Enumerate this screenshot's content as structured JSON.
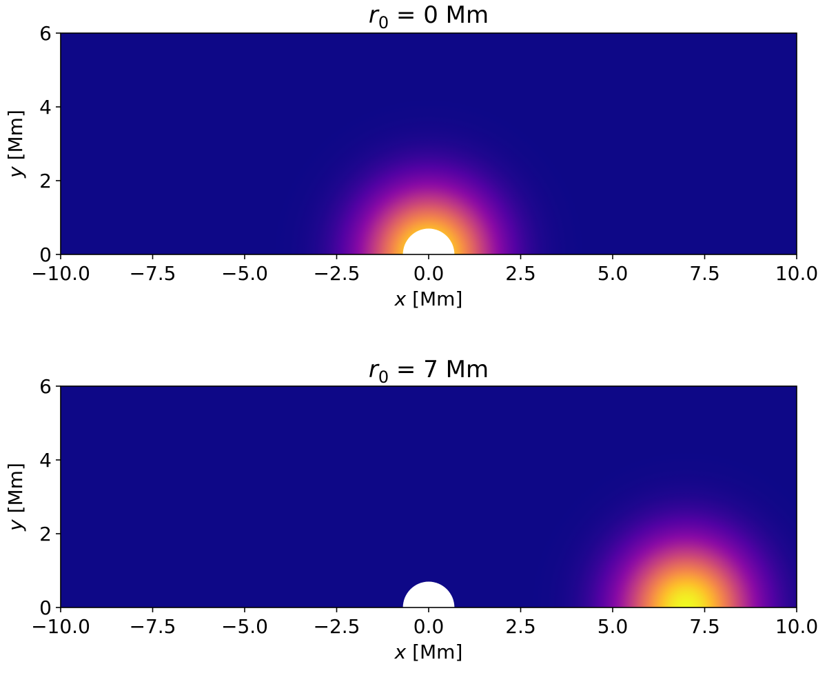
{
  "chart_data": [
    {
      "type": "heatmap",
      "title_var": "r",
      "title_sub": "0",
      "title_rest": " = 0 Mm",
      "r0": 0,
      "xlabel_var": "x",
      "xlabel_rest": " [Mm]",
      "ylabel_var": "y",
      "ylabel_rest": " [Mm]",
      "xlim": [
        -10,
        10
      ],
      "ylim": [
        0,
        6
      ],
      "xticks": [
        -10,
        -7.5,
        -5,
        -2.5,
        0,
        2.5,
        5,
        7.5,
        10
      ],
      "xtick_labels": [
        "−10.0",
        "−7.5",
        "−5.0",
        "−2.5",
        "0.0",
        "2.5",
        "5.0",
        "7.5",
        "10.0"
      ],
      "yticks": [
        0,
        2,
        4,
        6
      ],
      "ytick_labels": [
        "0",
        "2",
        "4",
        "6"
      ],
      "colormap": "plasma",
      "peak_center": [
        0,
        0
      ],
      "profile_width": 1.2,
      "masked_semicircle": {
        "center": [
          0,
          0
        ],
        "radius": 0.7
      }
    },
    {
      "type": "heatmap",
      "title_var": "r",
      "title_sub": "0",
      "title_rest": " = 7 Mm",
      "r0": 7,
      "xlabel_var": "x",
      "xlabel_rest": " [Mm]",
      "ylabel_var": "y",
      "ylabel_rest": " [Mm]",
      "xlim": [
        -10,
        10
      ],
      "ylim": [
        0,
        6
      ],
      "xticks": [
        -10,
        -7.5,
        -5,
        -2.5,
        0,
        2.5,
        5,
        7.5,
        10
      ],
      "xtick_labels": [
        "−10.0",
        "−7.5",
        "−5.0",
        "−2.5",
        "0.0",
        "2.5",
        "5.0",
        "7.5",
        "10.0"
      ],
      "yticks": [
        0,
        2,
        4,
        6
      ],
      "ytick_labels": [
        "0",
        "2",
        "4",
        "6"
      ],
      "colormap": "plasma",
      "peak_center": [
        7,
        0
      ],
      "profile_width": 1.2,
      "masked_semicircle": {
        "center": [
          0,
          0
        ],
        "radius": 0.7
      }
    }
  ],
  "colors": {
    "background": "#ffffff",
    "plasma_stops": [
      "#0d0887",
      "#5302a3",
      "#8b0aa5",
      "#b83289",
      "#db5c68",
      "#f48849",
      "#febd2a",
      "#f0f921"
    ]
  }
}
